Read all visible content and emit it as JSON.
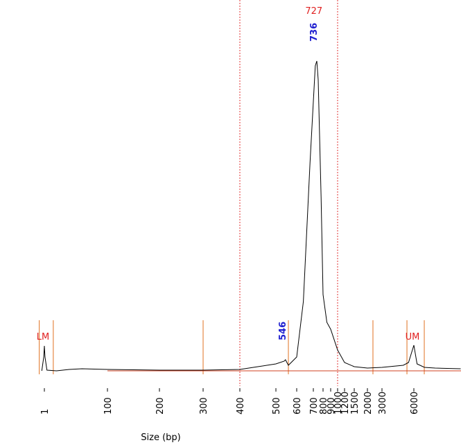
{
  "chart_data": {
    "type": "line",
    "xlabel": "Size (bp)",
    "xticks": [
      1,
      100,
      200,
      300,
      400,
      500,
      600,
      700,
      800,
      900,
      1000,
      1200,
      1500,
      2000,
      3000,
      6000
    ],
    "series": [
      {
        "color": "#000000",
        "x": [
          -3,
          0,
          1,
          2,
          5,
          20,
          40,
          60,
          100,
          200,
          300,
          400,
          450,
          500,
          540,
          546,
          560,
          600,
          640,
          680,
          720,
          736,
          750,
          780,
          800,
          850,
          900,
          1000,
          1200,
          1500,
          2000,
          3000,
          5000,
          5500,
          6000,
          6300,
          7000,
          8000,
          10400
        ],
        "values": [
          0,
          20,
          36,
          20,
          1,
          0,
          2,
          3,
          2,
          1,
          1,
          2,
          6,
          10,
          14,
          16,
          8,
          20,
          100,
          300,
          440,
          447,
          420,
          250,
          110,
          70,
          60,
          30,
          12,
          6,
          4,
          5,
          8,
          12,
          37,
          10,
          5,
          4,
          3
        ]
      }
    ],
    "region_lines": [
      400,
      1000
    ],
    "marker_lines": [
      -7,
      15,
      300,
      560,
      2380,
      5350,
      6980
    ],
    "baseline_from": 100,
    "region_label": {
      "text": "727",
      "x": 727
    },
    "peak_labels": [
      {
        "text": "736",
        "x": 736,
        "y": 447
      },
      {
        "text": "546",
        "x": 546,
        "y": 16
      }
    ],
    "marker_labels": [
      {
        "text": "LM",
        "x": 1
      },
      {
        "text": "UM",
        "x": 6000
      }
    ]
  }
}
